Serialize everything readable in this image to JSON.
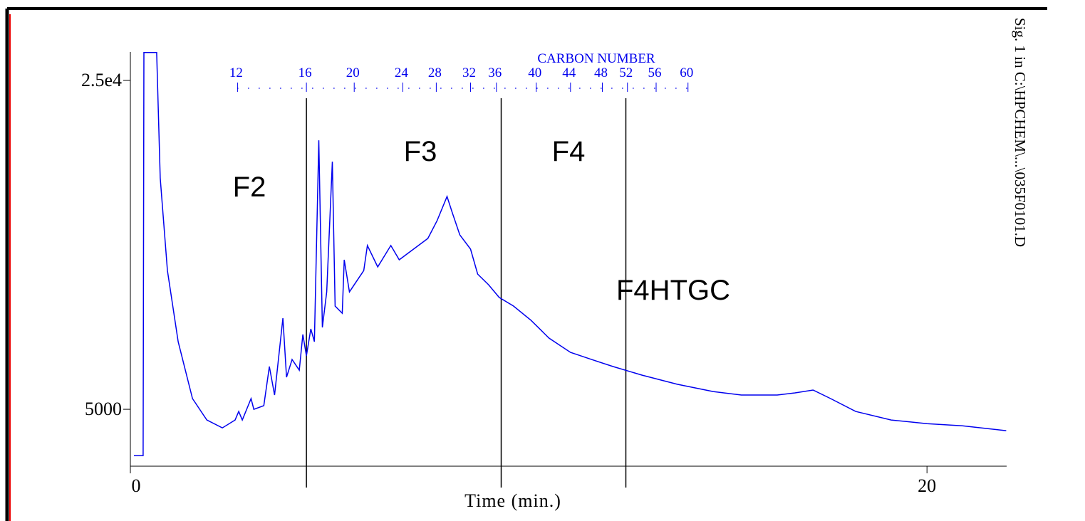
{
  "chart_data": {
    "type": "line",
    "x_label": "Time (min.)",
    "signal_label": "Sig. 1 in C:\\HPCHEM\\...\\035F0101.D",
    "xlim": [
      0,
      22
    ],
    "ylim": [
      1540,
      26730
    ],
    "xticks": [
      0,
      20
    ],
    "yticks": [
      {
        "value": 25000,
        "label": "2.5e4"
      },
      5000
    ],
    "series": [
      {
        "color": "#0000ee",
        "x": [
          0.09,
          0.32,
          0.34,
          0.66,
          0.75,
          0.93,
          1.2,
          1.56,
          1.92,
          2.31,
          2.63,
          2.72,
          2.81,
          3.03,
          3.1,
          3.35,
          3.49,
          3.62,
          3.83,
          3.92,
          4.06,
          4.24,
          4.33,
          4.42,
          4.53,
          4.62,
          4.73,
          4.82,
          4.93,
          5.07,
          5.14,
          5.32,
          5.37,
          5.5,
          5.86,
          5.95,
          6.21,
          6.54,
          6.75,
          7.11,
          7.47,
          7.7,
          7.95,
          8.09,
          8.27,
          8.54,
          8.72,
          8.99,
          9.26,
          9.62,
          10.06,
          10.51,
          11.05,
          11.58,
          12.12,
          12.84,
          13.73,
          14.63,
          15.34,
          16.24,
          16.69,
          17.14,
          17.58,
          18.21,
          19.1,
          20.0,
          20.89,
          21.99
        ],
        "values": [
          2186,
          2186,
          26700,
          26700,
          19070,
          13440,
          9110,
          5650,
          4350,
          3870,
          4350,
          4870,
          4350,
          5650,
          5000,
          5220,
          7600,
          5870,
          10540,
          6950,
          8030,
          7380,
          9550,
          8250,
          9890,
          9110,
          21360,
          9980,
          12140,
          20060,
          11280,
          10840,
          14090,
          12140,
          13440,
          14960,
          13660,
          14960,
          14090,
          14740,
          15390,
          16470,
          17940,
          16900,
          15610,
          14740,
          13220,
          12580,
          11800,
          11280,
          10410,
          9330,
          8460,
          8030,
          7600,
          7080,
          6520,
          6080,
          5870,
          5870,
          6000,
          6170,
          5650,
          4870,
          4350,
          4130,
          4000,
          3700
        ]
      }
    ],
    "fraction_lines": [
      4.42,
      9.31,
      12.44
    ],
    "fraction_labels": [
      "F2",
      "F3",
      "F4",
      "F4HTGC"
    ],
    "carbon_scale": {
      "title": "CARBON NUMBER",
      "labels": [
        12,
        16,
        20,
        24,
        28,
        32,
        36,
        40,
        44,
        48,
        52,
        56,
        60
      ],
      "x": [
        2.69,
        4.42,
        5.62,
        6.84,
        7.68,
        8.54,
        9.19,
        10.19,
        11.05,
        11.85,
        12.48,
        13.2,
        14.0
      ]
    }
  }
}
